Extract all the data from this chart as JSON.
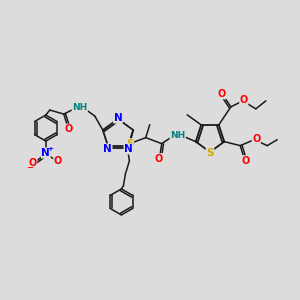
{
  "bg_color": "#dcdcdc",
  "bond_color": "#1a1a1a",
  "atom_colors": {
    "N": "#0000ff",
    "O": "#ff0000",
    "S": "#ccaa00",
    "H": "#008080",
    "C": "#1a1a1a"
  },
  "lw": 1.1,
  "fs": 6.5
}
